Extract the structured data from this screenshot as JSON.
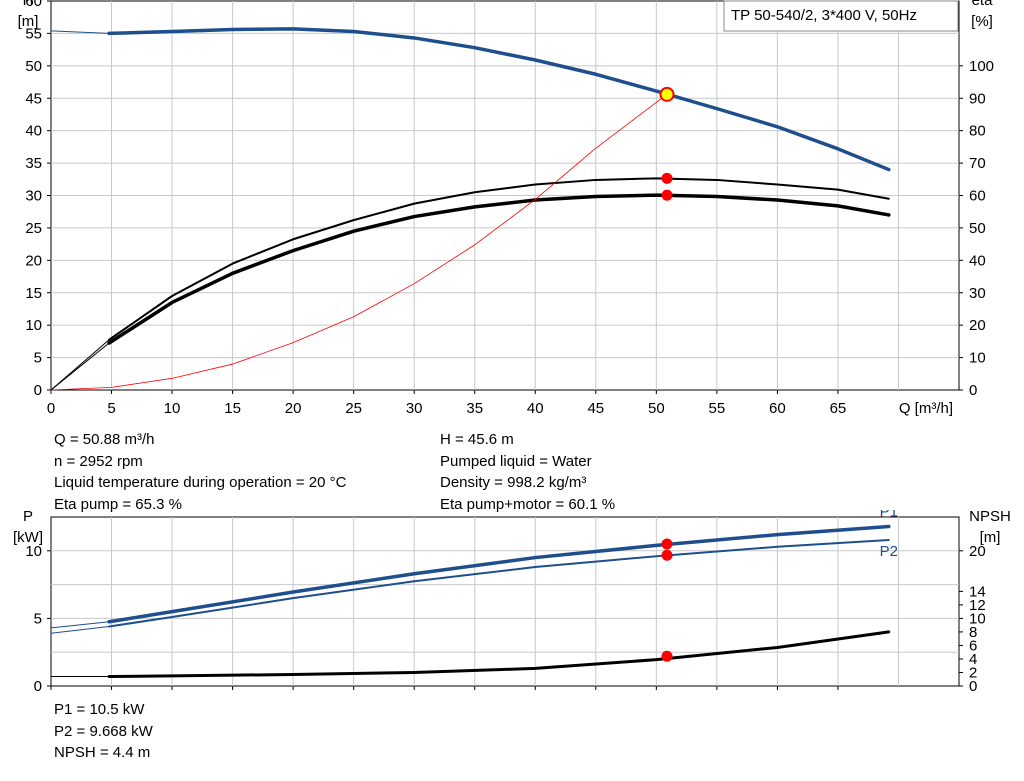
{
  "title": "TP 50-540/2, 3*400 V, 50Hz",
  "colors": {
    "blue": "#1f4e8c",
    "red": "#ff0000",
    "black": "#000000",
    "grid": "#c8c8c8",
    "op_point_fill": "#ffff00"
  },
  "chart_data": [
    {
      "type": "line",
      "name": "head-efficiency",
      "xlabel": "Q [m³/h]",
      "x_ticks": [
        0,
        5,
        10,
        15,
        20,
        25,
        30,
        35,
        40,
        45,
        50,
        55,
        60,
        65
      ],
      "xlim": [
        0,
        75
      ],
      "y_left": {
        "label_line1": "H",
        "label_line2": "[m]",
        "lim": [
          0,
          60
        ],
        "ticks": [
          0,
          5,
          10,
          15,
          20,
          25,
          30,
          35,
          40,
          45,
          50,
          55,
          60
        ]
      },
      "y_right": {
        "label_line1": "eta",
        "label_line2": "[%]",
        "lim": [
          0,
          120
        ],
        "ticks": [
          0,
          10,
          20,
          30,
          40,
          50,
          60,
          70,
          80,
          90,
          100
        ]
      },
      "series": [
        {
          "name": "H",
          "axis": "left",
          "x": [
            0,
            4.8,
            10,
            15,
            20,
            25,
            30,
            35,
            40,
            45,
            50,
            55,
            60,
            65,
            69.2
          ],
          "y": [
            55.4,
            55,
            55.3,
            55.6,
            55.7,
            55.3,
            54.3,
            52.8,
            50.9,
            48.7,
            46.1,
            43.4,
            40.6,
            37.2,
            34
          ]
        },
        {
          "name": "eta pump",
          "axis": "right",
          "x": [
            0,
            4.8,
            10,
            15,
            20,
            25,
            30,
            35,
            40,
            45,
            50,
            55,
            60,
            65,
            69.2
          ],
          "y": [
            0,
            15.5,
            29,
            39,
            46.5,
            52.4,
            57.5,
            61,
            63.4,
            64.8,
            65.3,
            64.8,
            63.4,
            61.8,
            59
          ]
        },
        {
          "name": "eta pump+motor",
          "axis": "right",
          "x": [
            0,
            4.8,
            10,
            15,
            20,
            25,
            30,
            35,
            40,
            45,
            50,
            55,
            60,
            65,
            69.2
          ],
          "y": [
            0,
            14.5,
            27,
            36,
            43,
            49,
            53.5,
            56.5,
            58.6,
            59.7,
            60.1,
            59.7,
            58.6,
            56.8,
            54
          ]
        },
        {
          "name": "system curve",
          "axis": "left",
          "x": [
            0,
            5,
            10,
            15,
            20,
            25,
            30,
            35,
            40,
            45,
            50.88
          ],
          "y": [
            0,
            0.4,
            1.8,
            4,
            7.3,
            11.3,
            16.4,
            22.4,
            29.4,
            37.3,
            45.6
          ]
        }
      ],
      "points": [
        {
          "axis": "left",
          "x": 50.88,
          "y": 45.6,
          "style": "operating"
        },
        {
          "axis": "right",
          "x": 50.88,
          "y": 65.3,
          "style": "red"
        },
        {
          "axis": "right",
          "x": 50.88,
          "y": 60.1,
          "style": "red"
        }
      ]
    },
    {
      "type": "line",
      "name": "power-npsh",
      "xlim": [
        0,
        75
      ],
      "x_ticks": [
        0,
        5,
        10,
        15,
        20,
        25,
        30,
        35,
        40,
        45,
        50,
        55,
        60,
        65
      ],
      "y_left": {
        "label_line1": "P",
        "label_line2": "[kW]",
        "lim": [
          0,
          12.5
        ],
        "ticks": [
          0,
          5,
          10
        ]
      },
      "y_right": {
        "label_line1": "NPSH",
        "label_line2": "[m]",
        "lim": [
          0,
          25
        ],
        "ticks": [
          0,
          2,
          4,
          6,
          8,
          10,
          12,
          14,
          20
        ]
      },
      "series": [
        {
          "name": "P1",
          "axis": "left",
          "x": [
            0,
            4.8,
            10,
            20,
            30,
            40,
            50,
            60,
            69.2
          ],
          "y": [
            4.3,
            4.75,
            5.5,
            6.95,
            8.3,
            9.5,
            10.4,
            11.2,
            11.8
          ]
        },
        {
          "name": "P2",
          "axis": "left",
          "x": [
            0,
            4.8,
            10,
            20,
            30,
            40,
            50,
            60,
            69.2
          ],
          "y": [
            3.9,
            4.4,
            5.1,
            6.5,
            7.75,
            8.8,
            9.6,
            10.3,
            10.8
          ]
        },
        {
          "name": "NPSH",
          "axis": "right",
          "x": [
            0,
            4.8,
            10,
            20,
            30,
            40,
            50,
            60,
            69.2
          ],
          "y": [
            1.4,
            1.4,
            1.5,
            1.7,
            2,
            2.6,
            3.9,
            5.7,
            8
          ]
        }
      ],
      "series_labels": [
        {
          "text": "P1",
          "series": "P1"
        },
        {
          "text": "P2",
          "series": "P2"
        }
      ],
      "points": [
        {
          "axis": "left",
          "x": 50.88,
          "y": 10.5,
          "style": "red"
        },
        {
          "axis": "left",
          "x": 50.88,
          "y": 9.668,
          "style": "red"
        },
        {
          "axis": "right",
          "x": 50.88,
          "y": 4.4,
          "style": "red"
        }
      ]
    }
  ],
  "info1_left": [
    "Q = 50.88 m³/h",
    "n = 2952 rpm",
    "Liquid temperature during operation = 20 °C",
    "Eta pump = 65.3 %"
  ],
  "info1_right": [
    "H = 45.6 m",
    "Pumped liquid = Water",
    "Density = 998.2 kg/m³",
    "Eta pump+motor = 60.1 %"
  ],
  "info2": [
    "P1 = 10.5 kW",
    "P2 = 9.668 kW",
    "NPSH = 4.4 m"
  ]
}
